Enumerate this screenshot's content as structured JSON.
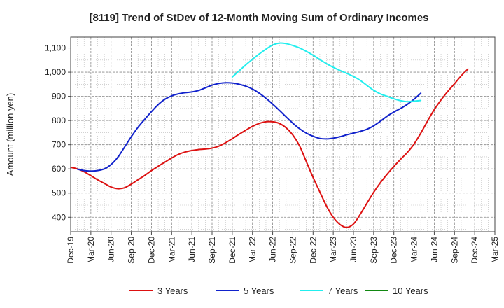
{
  "chart_data": {
    "type": "line",
    "title": "[8119]  Trend of StDev of 12-Month Moving Sum of Ordinary Incomes",
    "xlabel": "",
    "ylabel": "Amount (million yen)",
    "ylim": [
      340,
      1145
    ],
    "yticks": [
      400,
      500,
      600,
      700,
      800,
      900,
      1000,
      1100
    ],
    "ytick_labels": [
      "400",
      "500",
      "600",
      "700",
      "800",
      "900",
      "1,000",
      "1,100"
    ],
    "xlim": [
      0,
      63
    ],
    "xticks": [
      0,
      3,
      6,
      9,
      12,
      15,
      18,
      21,
      24,
      27,
      30,
      33,
      36,
      39,
      42,
      45,
      48,
      51,
      54,
      57,
      60,
      63
    ],
    "xtick_labels": [
      "Dec-19",
      "Mar-20",
      "Jun-20",
      "Sep-20",
      "Dec-20",
      "Mar-21",
      "Jun-21",
      "Sep-21",
      "Dec-21",
      "Mar-22",
      "Jun-22",
      "Sep-22",
      "Dec-22",
      "Mar-23",
      "Jun-23",
      "Sep-23",
      "Dec-23",
      "Mar-24",
      "Jun-24",
      "Sep-24",
      "Dec-24",
      "Mar-25"
    ],
    "grid": true,
    "legend_position": "bottom",
    "series": [
      {
        "name": "3 Years",
        "color": "#dd1111",
        "points": [
          [
            0,
            607
          ],
          [
            1,
            600
          ],
          [
            2,
            588
          ],
          [
            3,
            572
          ],
          [
            4,
            555
          ],
          [
            5,
            540
          ],
          [
            6,
            525
          ],
          [
            7,
            518
          ],
          [
            8,
            522
          ],
          [
            9,
            537
          ],
          [
            10,
            555
          ],
          [
            11,
            573
          ],
          [
            12,
            593
          ],
          [
            13,
            611
          ],
          [
            14,
            628
          ],
          [
            15,
            645
          ],
          [
            16,
            660
          ],
          [
            17,
            670
          ],
          [
            18,
            676
          ],
          [
            19,
            680
          ],
          [
            20,
            682
          ],
          [
            21,
            686
          ],
          [
            22,
            694
          ],
          [
            23,
            708
          ],
          [
            24,
            725
          ],
          [
            25,
            743
          ],
          [
            26,
            760
          ],
          [
            27,
            776
          ],
          [
            28,
            788
          ],
          [
            29,
            795
          ],
          [
            30,
            795
          ],
          [
            31,
            788
          ],
          [
            32,
            770
          ],
          [
            33,
            740
          ],
          [
            34,
            695
          ],
          [
            35,
            630
          ],
          [
            36,
            565
          ],
          [
            37,
            505
          ],
          [
            38,
            446
          ],
          [
            39,
            400
          ],
          [
            40,
            370
          ],
          [
            41,
            358
          ],
          [
            42,
            372
          ],
          [
            43,
            412
          ],
          [
            44,
            458
          ],
          [
            45,
            503
          ],
          [
            46,
            543
          ],
          [
            47,
            578
          ],
          [
            48,
            610
          ],
          [
            49,
            640
          ],
          [
            50,
            668
          ],
          [
            51,
            703
          ],
          [
            52,
            748
          ],
          [
            53,
            798
          ],
          [
            54,
            845
          ],
          [
            55,
            885
          ],
          [
            56,
            920
          ],
          [
            57,
            952
          ],
          [
            58,
            985
          ],
          [
            59,
            1013
          ]
        ]
      },
      {
        "name": "5 Years",
        "color": "#1122cc",
        "points": [
          [
            1,
            599
          ],
          [
            2,
            593
          ],
          [
            3,
            591
          ],
          [
            4,
            593
          ],
          [
            5,
            600
          ],
          [
            6,
            618
          ],
          [
            7,
            648
          ],
          [
            8,
            690
          ],
          [
            9,
            733
          ],
          [
            10,
            772
          ],
          [
            11,
            805
          ],
          [
            12,
            837
          ],
          [
            13,
            866
          ],
          [
            14,
            888
          ],
          [
            15,
            902
          ],
          [
            16,
            910
          ],
          [
            17,
            915
          ],
          [
            18,
            918
          ],
          [
            19,
            924
          ],
          [
            20,
            935
          ],
          [
            21,
            946
          ],
          [
            22,
            953
          ],
          [
            23,
            956
          ],
          [
            24,
            955
          ],
          [
            25,
            950
          ],
          [
            26,
            942
          ],
          [
            27,
            930
          ],
          [
            28,
            913
          ],
          [
            29,
            892
          ],
          [
            30,
            868
          ],
          [
            31,
            842
          ],
          [
            32,
            815
          ],
          [
            33,
            789
          ],
          [
            34,
            766
          ],
          [
            35,
            748
          ],
          [
            36,
            735
          ],
          [
            37,
            726
          ],
          [
            38,
            724
          ],
          [
            39,
            727
          ],
          [
            40,
            733
          ],
          [
            41,
            741
          ],
          [
            42,
            748
          ],
          [
            43,
            755
          ],
          [
            44,
            764
          ],
          [
            45,
            778
          ],
          [
            46,
            797
          ],
          [
            47,
            818
          ],
          [
            48,
            835
          ],
          [
            49,
            850
          ],
          [
            50,
            867
          ],
          [
            51,
            888
          ],
          [
            52,
            913
          ]
        ]
      },
      {
        "name": "7 Years",
        "color": "#22eeee",
        "points": [
          [
            24,
            980
          ],
          [
            25,
            1005
          ],
          [
            26,
            1030
          ],
          [
            27,
            1053
          ],
          [
            28,
            1075
          ],
          [
            29,
            1095
          ],
          [
            30,
            1112
          ],
          [
            31,
            1120
          ],
          [
            32,
            1118
          ],
          [
            33,
            1110
          ],
          [
            34,
            1100
          ],
          [
            35,
            1086
          ],
          [
            36,
            1070
          ],
          [
            37,
            1052
          ],
          [
            38,
            1035
          ],
          [
            39,
            1020
          ],
          [
            40,
            1007
          ],
          [
            41,
            995
          ],
          [
            42,
            982
          ],
          [
            43,
            966
          ],
          [
            44,
            945
          ],
          [
            45,
            925
          ],
          [
            46,
            910
          ],
          [
            47,
            900
          ],
          [
            48,
            890
          ],
          [
            49,
            882
          ],
          [
            50,
            878
          ],
          [
            51,
            880
          ],
          [
            52,
            883
          ]
        ]
      },
      {
        "name": "10 Years",
        "color": "#118811",
        "points": []
      }
    ]
  }
}
